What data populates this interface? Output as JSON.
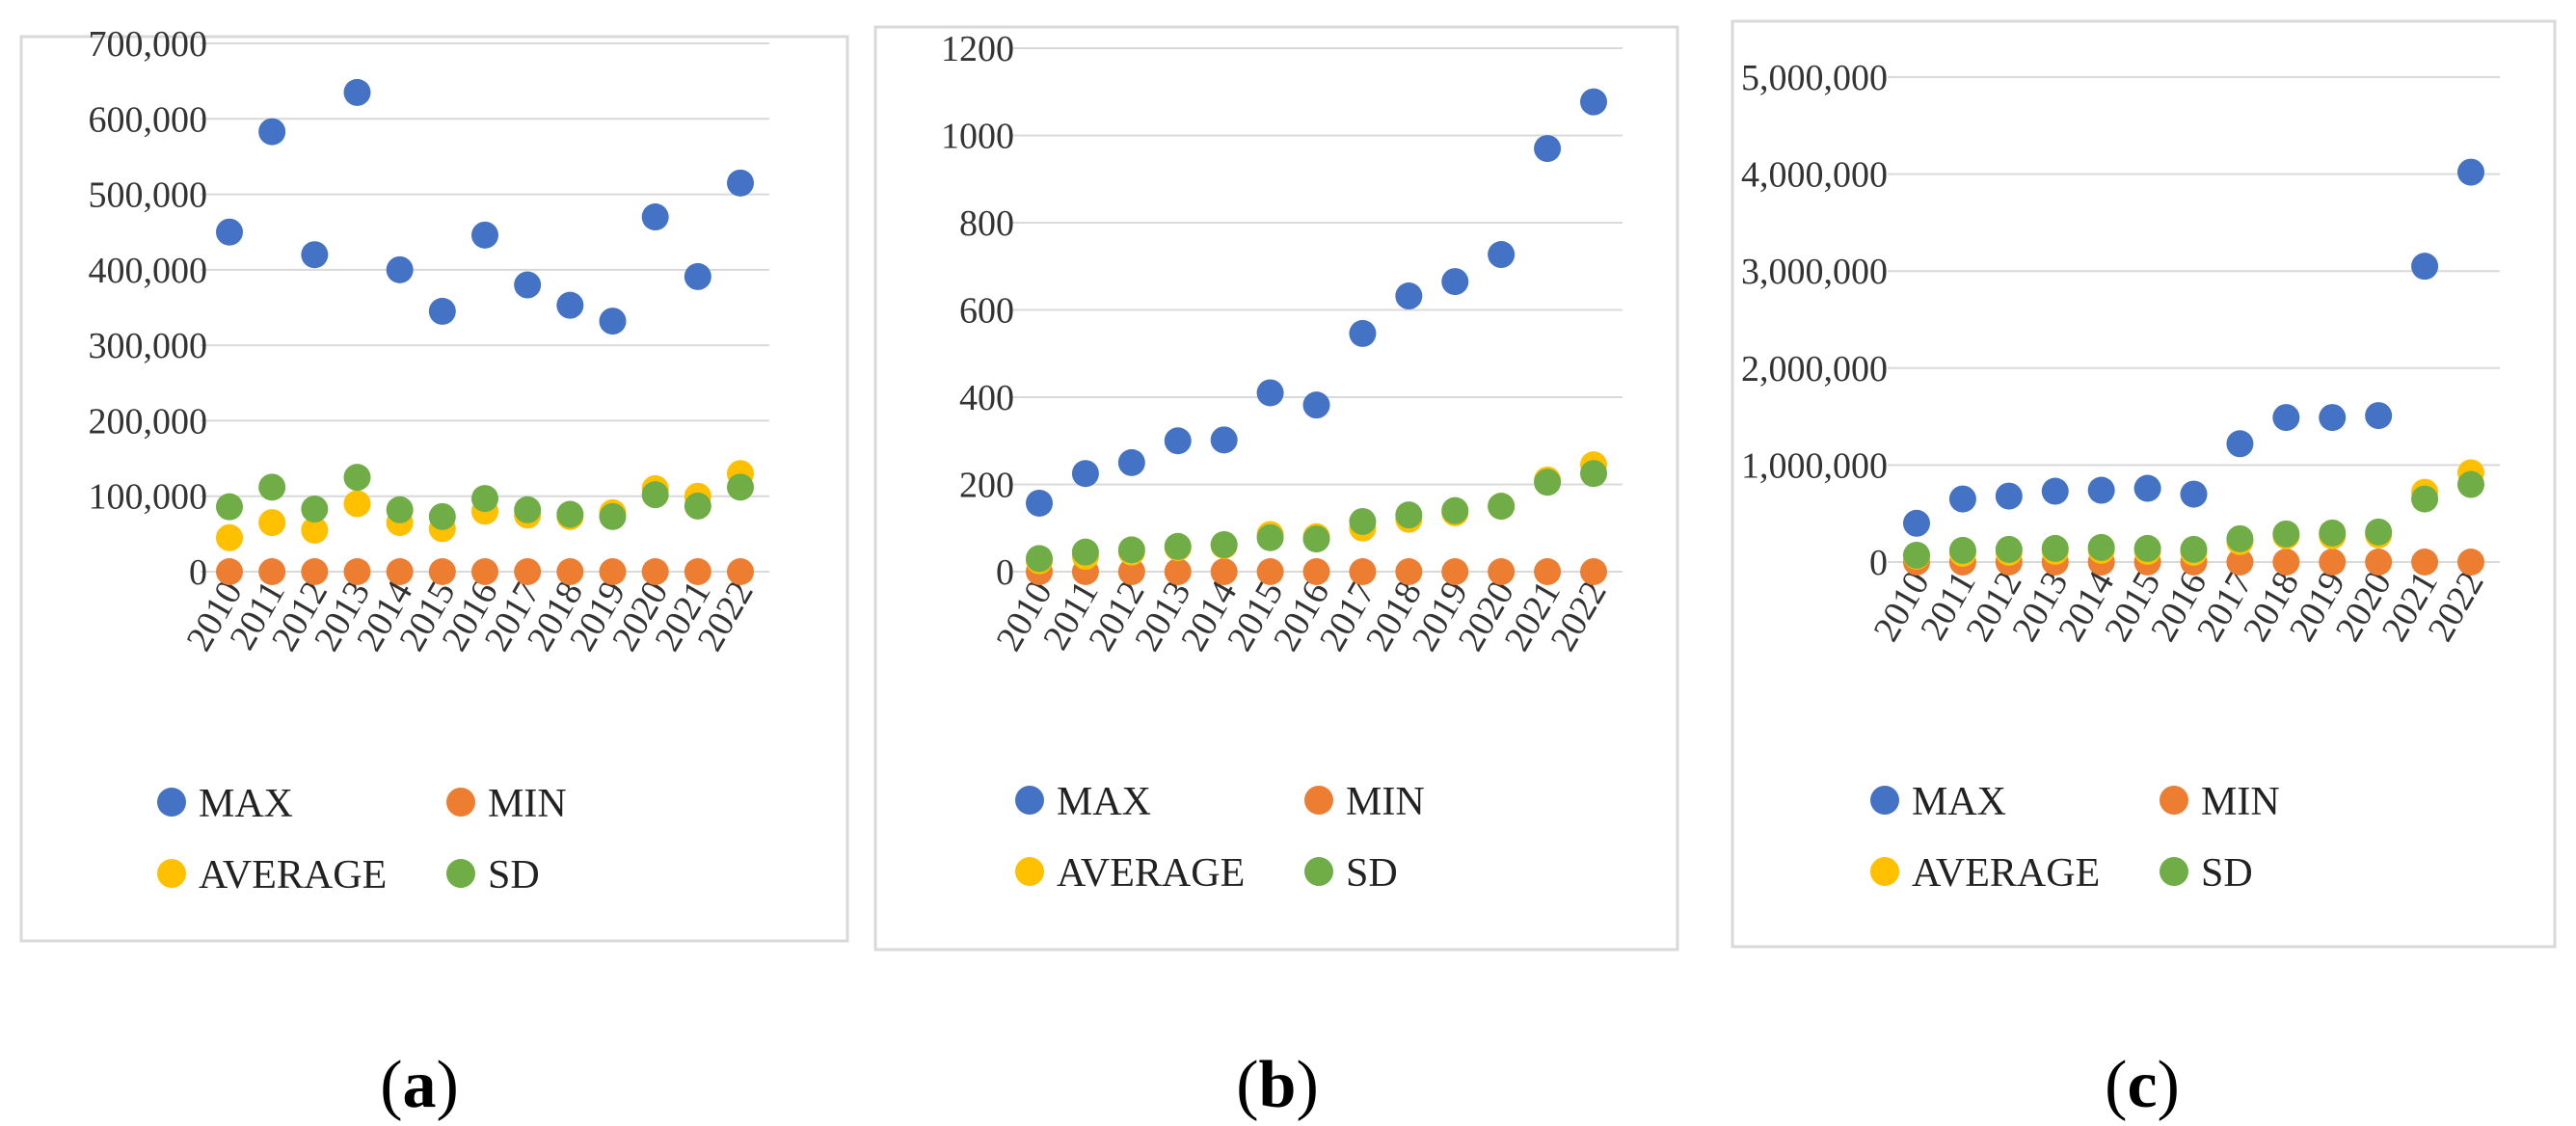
{
  "colors": {
    "MAX": "#4472C4",
    "MIN": "#ED7D31",
    "AVERAGE": "#FFC000",
    "SD": "#70AD47",
    "grid": "#d9d9d9",
    "border": "#d9d9d9"
  },
  "chart_data": [
    {
      "type": "scatter",
      "panel_label": {
        "open": "(",
        "letter": "a",
        "close": ")"
      },
      "categories": [
        "2010",
        "2011",
        "2012",
        "2013",
        "2014",
        "2015",
        "2016",
        "2017",
        "2018",
        "2019",
        "2020",
        "2021",
        "2022"
      ],
      "ylim": [
        0,
        700000
      ],
      "yticks": [
        0,
        100000,
        200000,
        300000,
        400000,
        500000,
        600000,
        700000
      ],
      "ytick_labels": [
        "0",
        "100,000",
        "200,000",
        "300,000",
        "400,000",
        "500,000",
        "600,000",
        "700,000"
      ],
      "grid": true,
      "legend": [
        "MAX",
        "MIN",
        "AVERAGE",
        "SD"
      ],
      "series": [
        {
          "name": "MAX",
          "values": [
            450000,
            583000,
            420000,
            635000,
            400000,
            345000,
            446000,
            380000,
            353000,
            332000,
            470000,
            391000,
            515000
          ]
        },
        {
          "name": "MIN",
          "values": [
            0,
            0,
            0,
            0,
            0,
            0,
            0,
            0,
            0,
            0,
            0,
            0,
            0
          ]
        },
        {
          "name": "AVERAGE",
          "values": [
            45000,
            65000,
            55000,
            90000,
            65000,
            57000,
            80000,
            75000,
            73000,
            78000,
            110000,
            100000,
            130000
          ]
        },
        {
          "name": "SD",
          "values": [
            86000,
            112000,
            83000,
            125000,
            82000,
            73000,
            97000,
            82000,
            76000,
            73000,
            102000,
            87000,
            112000
          ]
        }
      ]
    },
    {
      "type": "scatter",
      "panel_label": {
        "open": "(",
        "letter": "b",
        "close": ")"
      },
      "categories": [
        "2010",
        "2011",
        "2012",
        "2013",
        "2014",
        "2015",
        "2016",
        "2017",
        "2018",
        "2019",
        "2020",
        "2021",
        "2022"
      ],
      "ylim": [
        0,
        1200
      ],
      "yticks": [
        0,
        200,
        400,
        600,
        800,
        1000,
        1200
      ],
      "ytick_labels": [
        "0",
        "200",
        "400",
        "600",
        "800",
        "1000",
        "1200"
      ],
      "grid": true,
      "legend": [
        "MAX",
        "MIN",
        "AVERAGE",
        "SD"
      ],
      "series": [
        {
          "name": "MAX",
          "values": [
            157,
            225,
            250,
            300,
            302,
            410,
            382,
            546,
            632,
            665,
            727,
            970,
            1077
          ]
        },
        {
          "name": "MIN",
          "values": [
            0,
            0,
            0,
            0,
            0,
            0,
            0,
            0,
            0,
            0,
            0,
            0,
            0
          ]
        },
        {
          "name": "AVERAGE",
          "values": [
            25,
            35,
            45,
            55,
            60,
            85,
            80,
            100,
            120,
            135,
            150,
            210,
            245
          ]
        },
        {
          "name": "SD",
          "values": [
            30,
            45,
            50,
            58,
            62,
            78,
            75,
            115,
            130,
            140,
            150,
            205,
            225
          ]
        }
      ]
    },
    {
      "type": "scatter",
      "panel_label": {
        "open": "(",
        "letter": "c",
        "close": ")"
      },
      "categories": [
        "2010",
        "2011",
        "2012",
        "2013",
        "2014",
        "2015",
        "2016",
        "2017",
        "2018",
        "2019",
        "2020",
        "2021",
        "2022"
      ],
      "ylim": [
        0,
        5000000
      ],
      "yticks": [
        0,
        1000000,
        2000000,
        3000000,
        4000000,
        5000000
      ],
      "ytick_labels": [
        "0",
        "1,000,000",
        "2,000,000",
        "3,000,000",
        "4,000,000",
        "5,000,000"
      ],
      "grid": true,
      "legend": [
        "MAX",
        "MIN",
        "AVERAGE",
        "SD"
      ],
      "series": [
        {
          "name": "MAX",
          "values": [
            400000,
            650000,
            680000,
            730000,
            740000,
            760000,
            700000,
            1220000,
            1490000,
            1490000,
            1510000,
            3050000,
            4020000
          ]
        },
        {
          "name": "MIN",
          "values": [
            0,
            0,
            0,
            0,
            0,
            0,
            0,
            0,
            0,
            0,
            0,
            0,
            0
          ]
        },
        {
          "name": "AVERAGE",
          "values": [
            60000,
            90000,
            100000,
            110000,
            120000,
            110000,
            100000,
            210000,
            270000,
            270000,
            280000,
            720000,
            920000
          ]
        },
        {
          "name": "SD",
          "values": [
            70000,
            120000,
            130000,
            140000,
            150000,
            140000,
            130000,
            240000,
            290000,
            300000,
            310000,
            650000,
            800000
          ]
        }
      ]
    }
  ]
}
